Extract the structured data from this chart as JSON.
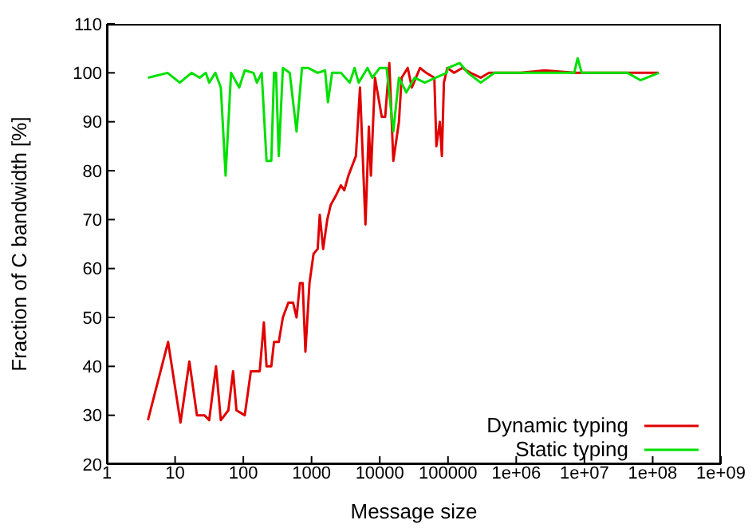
{
  "chart_data": {
    "type": "line",
    "xlabel": "Message size",
    "ylabel": "Fraction of C bandwidth [%]",
    "log": "x",
    "grid": false,
    "legend": "bottom right",
    "marker": "none",
    "line_style": "solid",
    "xlim": [
      1,
      1000000000
    ],
    "xticks": [
      1,
      10,
      100,
      1000,
      10000,
      100000,
      {
        "value": 1000000,
        "label": "1e+06"
      },
      {
        "value": 10000000,
        "label": "1e+07"
      },
      {
        "value": 100000000,
        "label": "1e+08"
      },
      {
        "value": 1000000000,
        "label": "1e+09"
      }
    ],
    "ylim": [
      20,
      110
    ],
    "yticks": [
      20,
      30,
      40,
      50,
      60,
      70,
      80,
      90,
      100,
      110
    ],
    "series": [
      {
        "name": "Dynamic typing",
        "color": "#e00000",
        "x": [
          4,
          7.9,
          12,
          16.2,
          20.9,
          26.9,
          31.6,
          39.8,
          46.8,
          60.3,
          70.8,
          79.4,
          105,
          129,
          174,
          200,
          219,
          257,
          282,
          331,
          380,
          457,
          537,
          603,
          676,
          741,
          813,
          933,
          1070,
          1230,
          1320,
          1480,
          1700,
          1910,
          2290,
          2690,
          3020,
          3470,
          4470,
          5130,
          6170,
          6920,
          7410,
          8510,
          10700,
          12000,
          13800,
          15800,
          19100,
          20900,
          25700,
          29500,
          38900,
          47900,
          63100,
          67600,
          75900,
          81300,
          87100,
          97700,
          123000,
          162000,
          214000,
          302000,
          398000,
          562000,
          1170000,
          2630000,
          7080000,
          123000000
        ],
        "values": [
          29,
          45,
          28.5,
          41,
          30,
          30,
          29,
          40,
          29,
          31,
          39,
          31,
          30,
          39,
          39,
          49,
          40,
          40,
          45,
          45,
          50,
          53,
          53,
          50,
          57,
          57,
          43,
          57,
          63,
          64,
          71,
          64,
          70,
          73,
          75,
          77,
          76,
          79,
          83,
          97,
          69,
          89,
          79,
          99,
          91,
          91,
          102,
          82,
          90,
          99,
          101,
          97,
          101,
          100,
          99,
          85,
          90,
          83,
          98,
          101,
          100,
          101,
          100,
          99,
          100,
          100,
          100,
          100.5,
          100,
          100
        ]
      },
      {
        "name": "Static typing",
        "color": "#00e000",
        "x": [
          4,
          7.76,
          11.7,
          17.4,
          22.9,
          28.2,
          31.6,
          38.9,
          46.8,
          55,
          66.1,
          87.1,
          105,
          141,
          158,
          186,
          219,
          257,
          282,
          302,
          331,
          380,
          479,
          603,
          724,
          891,
          1230,
          1580,
          1740,
          2000,
          2690,
          3630,
          4270,
          4900,
          6610,
          7760,
          10000,
          12600,
          15800,
          19100,
          24500,
          32400,
          45700,
          66100,
          95500,
          100000,
          148000,
          195000,
          302000,
          479000,
          1170000,
          2880000,
          7080000,
          7940000,
          9120000,
          42700000,
          66100000,
          123000000
        ],
        "values": [
          99,
          100,
          98,
          100,
          99,
          100,
          98,
          100,
          97,
          79,
          100,
          97,
          100.5,
          100,
          98,
          100,
          82,
          82,
          100,
          100,
          83,
          101,
          100,
          88,
          101,
          101,
          100,
          100.5,
          94,
          100,
          100,
          98,
          101,
          98,
          101,
          99,
          101,
          101,
          88,
          99,
          96,
          99,
          98,
          99,
          100,
          101,
          102,
          100,
          98,
          100,
          100,
          100,
          100,
          103,
          100,
          100,
          98.5,
          100
        ]
      }
    ]
  }
}
